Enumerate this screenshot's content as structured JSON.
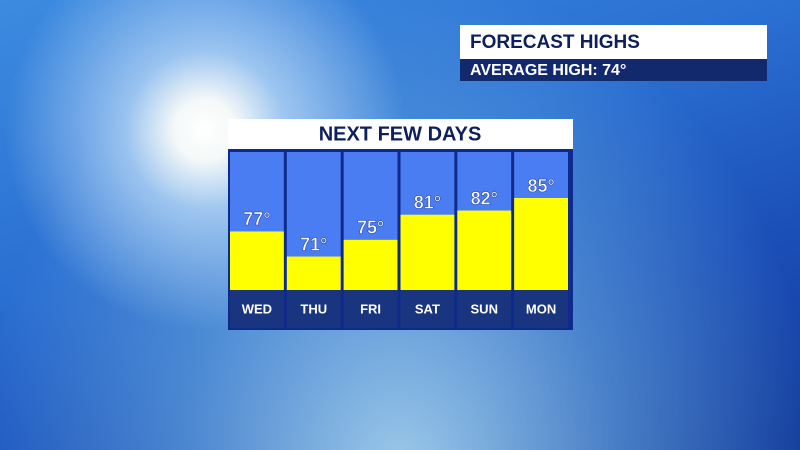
{
  "chart_data": {
    "type": "bar",
    "title": "NEXT FEW DAYS",
    "annotations": [
      "FORECAST HIGHS",
      "AVERAGE HIGH:  74°"
    ],
    "categories": [
      "WED",
      "THU",
      "FRI",
      "SAT",
      "SUN",
      "MON"
    ],
    "values": [
      77,
      71,
      75,
      81,
      82,
      85
    ],
    "value_labels": [
      "77°",
      "71°",
      "75°",
      "81°",
      "82°",
      "85°"
    ],
    "color": "#ffff00",
    "background_color": "#4a7cf2",
    "ylim": [
      63,
      96
    ]
  }
}
